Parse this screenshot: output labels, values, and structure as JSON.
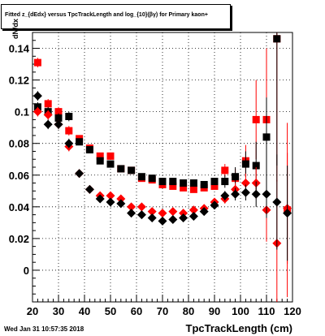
{
  "header": {
    "title": "Fitted  z_{dEdx} versus TpcTrackLength and log_{10}(βγ) for Primary kaon+"
  },
  "footer": {
    "timestamp": "Wed Jan 31 10:57:35 2018"
  },
  "chart_data": {
    "type": "scatter",
    "title": "Fitted  z_{dEdx} versus TpcTrackLength and log_{10}(βγ) for Primary kaon+",
    "xlabel": "TpcTrackLength (cm)",
    "ylabel": "dN/dx",
    "xlim": [
      20,
      120
    ],
    "ylim": [
      -0.02,
      0.15
    ],
    "xticks": [
      20,
      30,
      40,
      50,
      60,
      70,
      80,
      90,
      100,
      110,
      120
    ],
    "yticks": [
      0,
      0.02,
      0.04,
      0.06,
      0.08,
      0.1,
      0.12,
      0.14
    ],
    "grid": true,
    "series": [
      {
        "color": "#ff0000",
        "marker": "square",
        "points": [
          {
            "x": 22,
            "y": 0.131,
            "err": 0.003
          },
          {
            "x": 26,
            "y": 0.105,
            "err": 0.003
          },
          {
            "x": 30,
            "y": 0.1,
            "err": 0.003
          },
          {
            "x": 34,
            "y": 0.088,
            "err": 0.003
          },
          {
            "x": 38,
            "y": 0.083,
            "err": 0.002
          },
          {
            "x": 42,
            "y": 0.077,
            "err": 0.002
          },
          {
            "x": 46,
            "y": 0.072,
            "err": 0.002
          },
          {
            "x": 50,
            "y": 0.072,
            "err": 0.002
          },
          {
            "x": 54,
            "y": 0.064,
            "err": 0.002
          },
          {
            "x": 58,
            "y": 0.063,
            "err": 0.002
          },
          {
            "x": 62,
            "y": 0.058,
            "err": 0.002
          },
          {
            "x": 66,
            "y": 0.057,
            "err": 0.002
          },
          {
            "x": 70,
            "y": 0.054,
            "err": 0.002
          },
          {
            "x": 74,
            "y": 0.053,
            "err": 0.002
          },
          {
            "x": 78,
            "y": 0.052,
            "err": 0.002
          },
          {
            "x": 82,
            "y": 0.051,
            "err": 0.002
          },
          {
            "x": 86,
            "y": 0.052,
            "err": 0.002
          },
          {
            "x": 90,
            "y": 0.053,
            "err": 0.002
          },
          {
            "x": 94,
            "y": 0.063,
            "err": 0.004
          },
          {
            "x": 98,
            "y": 0.058,
            "err": 0.006
          },
          {
            "x": 102,
            "y": 0.069,
            "err": 0.01
          },
          {
            "x": 106,
            "y": 0.095,
            "err": 0.025
          },
          {
            "x": 110,
            "y": 0.095,
            "err": 0.045
          },
          {
            "x": 114,
            "y": 0.146,
            "err": 0.09
          },
          {
            "x": 118,
            "y": 0.038,
            "err": 0.055
          }
        ]
      },
      {
        "color": "#000000",
        "marker": "square",
        "points": [
          {
            "x": 22,
            "y": 0.103,
            "err": 0.003
          },
          {
            "x": 26,
            "y": 0.1,
            "err": 0.003
          },
          {
            "x": 30,
            "y": 0.096,
            "err": 0.003
          },
          {
            "x": 34,
            "y": 0.097,
            "err": 0.003
          },
          {
            "x": 38,
            "y": 0.081,
            "err": 0.002
          },
          {
            "x": 42,
            "y": 0.076,
            "err": 0.002
          },
          {
            "x": 46,
            "y": 0.069,
            "err": 0.002
          },
          {
            "x": 50,
            "y": 0.067,
            "err": 0.002
          },
          {
            "x": 54,
            "y": 0.064,
            "err": 0.002
          },
          {
            "x": 58,
            "y": 0.063,
            "err": 0.002
          },
          {
            "x": 62,
            "y": 0.059,
            "err": 0.002
          },
          {
            "x": 66,
            "y": 0.058,
            "err": 0.002
          },
          {
            "x": 70,
            "y": 0.056,
            "err": 0.002
          },
          {
            "x": 74,
            "y": 0.056,
            "err": 0.002
          },
          {
            "x": 78,
            "y": 0.055,
            "err": 0.002
          },
          {
            "x": 82,
            "y": 0.055,
            "err": 0.002
          },
          {
            "x": 86,
            "y": 0.054,
            "err": 0.002
          },
          {
            "x": 90,
            "y": 0.056,
            "err": 0.002
          },
          {
            "x": 94,
            "y": 0.056,
            "err": 0.004
          },
          {
            "x": 98,
            "y": 0.059,
            "err": 0.006
          },
          {
            "x": 102,
            "y": 0.067,
            "err": 0.008
          },
          {
            "x": 106,
            "y": 0.066,
            "err": 0.015
          },
          {
            "x": 110,
            "y": 0.084,
            "err": 0.025
          },
          {
            "x": 114,
            "y": 0.146,
            "err": 0.08
          }
        ]
      },
      {
        "color": "#ff0000",
        "marker": "diamond",
        "points": [
          {
            "x": 22,
            "y": 0.1,
            "err": 0.003
          },
          {
            "x": 26,
            "y": 0.098,
            "err": 0.003
          },
          {
            "x": 30,
            "y": 0.092,
            "err": 0.003
          },
          {
            "x": 34,
            "y": 0.078,
            "err": 0.003
          },
          {
            "x": 38,
            "y": 0.061,
            "err": 0.002
          },
          {
            "x": 42,
            "y": 0.051,
            "err": 0.002
          },
          {
            "x": 46,
            "y": 0.047,
            "err": 0.002
          },
          {
            "x": 50,
            "y": 0.047,
            "err": 0.002
          },
          {
            "x": 54,
            "y": 0.045,
            "err": 0.002
          },
          {
            "x": 58,
            "y": 0.04,
            "err": 0.002
          },
          {
            "x": 62,
            "y": 0.04,
            "err": 0.002
          },
          {
            "x": 66,
            "y": 0.037,
            "err": 0.002
          },
          {
            "x": 70,
            "y": 0.036,
            "err": 0.002
          },
          {
            "x": 74,
            "y": 0.037,
            "err": 0.002
          },
          {
            "x": 78,
            "y": 0.036,
            "err": 0.002
          },
          {
            "x": 82,
            "y": 0.038,
            "err": 0.002
          },
          {
            "x": 86,
            "y": 0.039,
            "err": 0.002
          },
          {
            "x": 90,
            "y": 0.043,
            "err": 0.002
          },
          {
            "x": 94,
            "y": 0.045,
            "err": 0.003
          },
          {
            "x": 98,
            "y": 0.051,
            "err": 0.004
          },
          {
            "x": 102,
            "y": 0.055,
            "err": 0.006
          },
          {
            "x": 106,
            "y": 0.055,
            "err": 0.01
          },
          {
            "x": 110,
            "y": 0.038,
            "err": 0.02
          },
          {
            "x": 114,
            "y": 0.017,
            "err": 0.04
          },
          {
            "x": 118,
            "y": 0.039,
            "err": 0.035
          }
        ]
      },
      {
        "color": "#000000",
        "marker": "diamond",
        "points": [
          {
            "x": 22,
            "y": 0.11,
            "err": 0.003
          },
          {
            "x": 26,
            "y": 0.092,
            "err": 0.003
          },
          {
            "x": 30,
            "y": 0.092,
            "err": 0.003
          },
          {
            "x": 34,
            "y": 0.08,
            "err": 0.003
          },
          {
            "x": 38,
            "y": 0.061,
            "err": 0.002
          },
          {
            "x": 42,
            "y": 0.051,
            "err": 0.002
          },
          {
            "x": 46,
            "y": 0.045,
            "err": 0.002
          },
          {
            "x": 50,
            "y": 0.043,
            "err": 0.002
          },
          {
            "x": 54,
            "y": 0.042,
            "err": 0.002
          },
          {
            "x": 58,
            "y": 0.036,
            "err": 0.002
          },
          {
            "x": 62,
            "y": 0.035,
            "err": 0.002
          },
          {
            "x": 66,
            "y": 0.033,
            "err": 0.002
          },
          {
            "x": 70,
            "y": 0.031,
            "err": 0.002
          },
          {
            "x": 74,
            "y": 0.032,
            "err": 0.002
          },
          {
            "x": 78,
            "y": 0.033,
            "err": 0.002
          },
          {
            "x": 82,
            "y": 0.034,
            "err": 0.002
          },
          {
            "x": 86,
            "y": 0.037,
            "err": 0.002
          },
          {
            "x": 90,
            "y": 0.041,
            "err": 0.002
          },
          {
            "x": 94,
            "y": 0.047,
            "err": 0.003
          },
          {
            "x": 98,
            "y": 0.048,
            "err": 0.004
          },
          {
            "x": 102,
            "y": 0.049,
            "err": 0.005
          },
          {
            "x": 106,
            "y": 0.048,
            "err": 0.008
          },
          {
            "x": 110,
            "y": 0.048,
            "err": 0.015
          },
          {
            "x": 114,
            "y": 0.043,
            "err": 0.03
          },
          {
            "x": 118,
            "y": 0.036,
            "err": 0.03
          }
        ]
      }
    ]
  }
}
